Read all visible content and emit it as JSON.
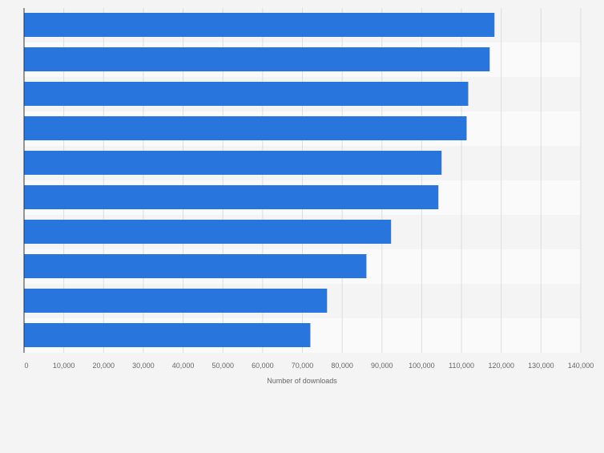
{
  "chart_data": {
    "type": "bar",
    "orientation": "horizontal",
    "title": "",
    "xlabel": "Number of downloads",
    "ylabel": "",
    "categories": [
      "",
      "",
      "",
      "",
      "",
      "",
      "",
      "",
      "",
      ""
    ],
    "values": [
      118300,
      117100,
      111700,
      111300,
      105000,
      104200,
      92300,
      86100,
      76200,
      72000
    ],
    "xlim": [
      0,
      140000
    ],
    "xticks": [
      0,
      10000,
      20000,
      30000,
      40000,
      50000,
      60000,
      70000,
      80000,
      90000,
      100000,
      110000,
      120000,
      130000,
      140000
    ],
    "xtick_labels": [
      "0",
      "10,000",
      "20,000",
      "30,000",
      "40,000",
      "50,000",
      "60,000",
      "70,000",
      "80,000",
      "90,000",
      "100,000",
      "110,000",
      "120,000",
      "130,000",
      "140,000"
    ],
    "grid": true,
    "legend": "none",
    "colors": {
      "bar": "#2876dd",
      "band_a": "#f4f4f4",
      "band_b": "#fafafa",
      "grid": "#dddddd",
      "text": "#666666"
    }
  }
}
